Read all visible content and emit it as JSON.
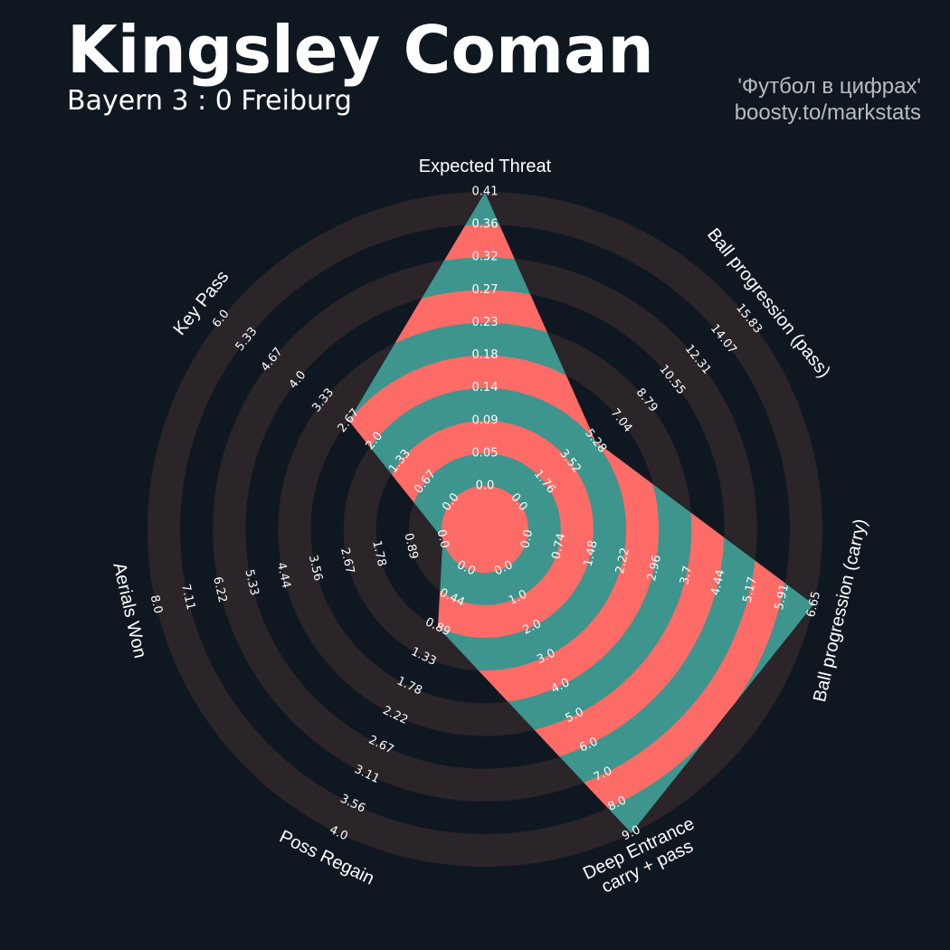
{
  "header": {
    "player_name": "Kingsley Coman",
    "match": "Bayern 3 : 0 Freiburg",
    "credit_line1": "'Футбол в цифрах'",
    "credit_line2": "boosty.to/markstats"
  },
  "colors": {
    "background": "#0f1820",
    "ring_band": "#2b2429",
    "fill_teal": "#3d958d",
    "fill_coral": "#ff6b67",
    "text": "#ffffff"
  },
  "chart_data": {
    "type": "radar",
    "grid": true,
    "params": [
      {
        "label": "Expected Threat",
        "value": 0.41,
        "ticks": [
          "0.0",
          "0.05",
          "0.09",
          "0.14",
          "0.18",
          "0.23",
          "0.27",
          "0.32",
          "0.36",
          "0.41"
        ]
      },
      {
        "label": "Ball progression (pass)",
        "value": 5.28,
        "ticks": [
          "0.0",
          "1.76",
          "3.52",
          "5.28",
          "7.04",
          "8.79",
          "10.55",
          "12.31",
          "14.07",
          "15.83"
        ]
      },
      {
        "label": "Ball progression (carry)",
        "value": 6.65,
        "ticks": [
          "0.0",
          "0.74",
          "1.48",
          "2.22",
          "2.96",
          "3.7",
          "4.44",
          "5.17",
          "5.91",
          "6.65"
        ]
      },
      {
        "label": "Deep Entrance\ncarry + pass",
        "value": 9.0,
        "ticks": [
          "0.0",
          "1.0",
          "2.0",
          "3.0",
          "4.0",
          "5.0",
          "6.0",
          "7.0",
          "8.0",
          "9.0"
        ]
      },
      {
        "label": "Poss Regain",
        "value": 0.89,
        "ticks": [
          "0.0",
          "0.44",
          "0.89",
          "1.33",
          "1.78",
          "2.22",
          "2.67",
          "3.11",
          "3.56",
          "4.0"
        ]
      },
      {
        "label": "Aerials Won",
        "value": 0.0,
        "ticks": [
          "0.0",
          "0.89",
          "1.78",
          "2.67",
          "3.56",
          "4.44",
          "5.33",
          "6.22",
          "7.11",
          "8.0"
        ]
      },
      {
        "label": "Key Pass",
        "value": 2.67,
        "ticks": [
          "0.0",
          "0.67",
          "1.33",
          "2.0",
          "2.67",
          "3.33",
          "4.0",
          "4.67",
          "5.33",
          "6.0"
        ]
      }
    ]
  }
}
